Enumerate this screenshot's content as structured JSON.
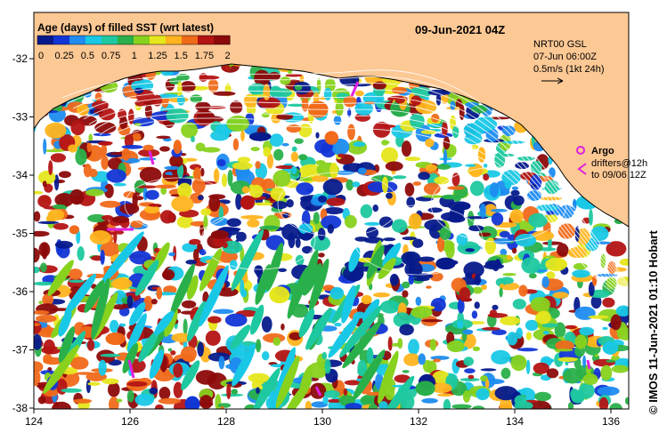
{
  "title": "09-Jun-2021 04Z",
  "legend": {
    "title": "Age (days) of filled SST (wrt latest)",
    "ticks": [
      "0",
      "0.25",
      "0.5",
      "0.75",
      "1",
      "1.25",
      "1.5",
      "1.75",
      "2"
    ],
    "colors": [
      "#061a8c",
      "#1236d6",
      "#1e8cf0",
      "#19c8e6",
      "#1ec8a0",
      "#2ab04a",
      "#88d21e",
      "#e6e61e",
      "#ffb41e",
      "#f06a1a",
      "#b41414",
      "#8c0a0a"
    ]
  },
  "currents_info": {
    "line1": "NRT00 GSL",
    "line2": "07-Jun 06:00Z",
    "line3": "0.5m/s (1kt 24h)"
  },
  "argo_legend": {
    "label": "Argo",
    "line2": "drifters@12h",
    "line3": "to 09/06 12Z",
    "color": "#e020e0"
  },
  "credit": "© IMOS 11-Jun-2021 01:10 Hobart",
  "axes": {
    "x_ticks": [
      "124",
      "126",
      "128",
      "130",
      "132",
      "134",
      "136"
    ],
    "y_ticks": [
      "-32",
      "-33",
      "-34",
      "-35",
      "-36",
      "-37",
      "-38"
    ]
  },
  "colors": {
    "land": "#fcc894",
    "frame": "#000000"
  }
}
